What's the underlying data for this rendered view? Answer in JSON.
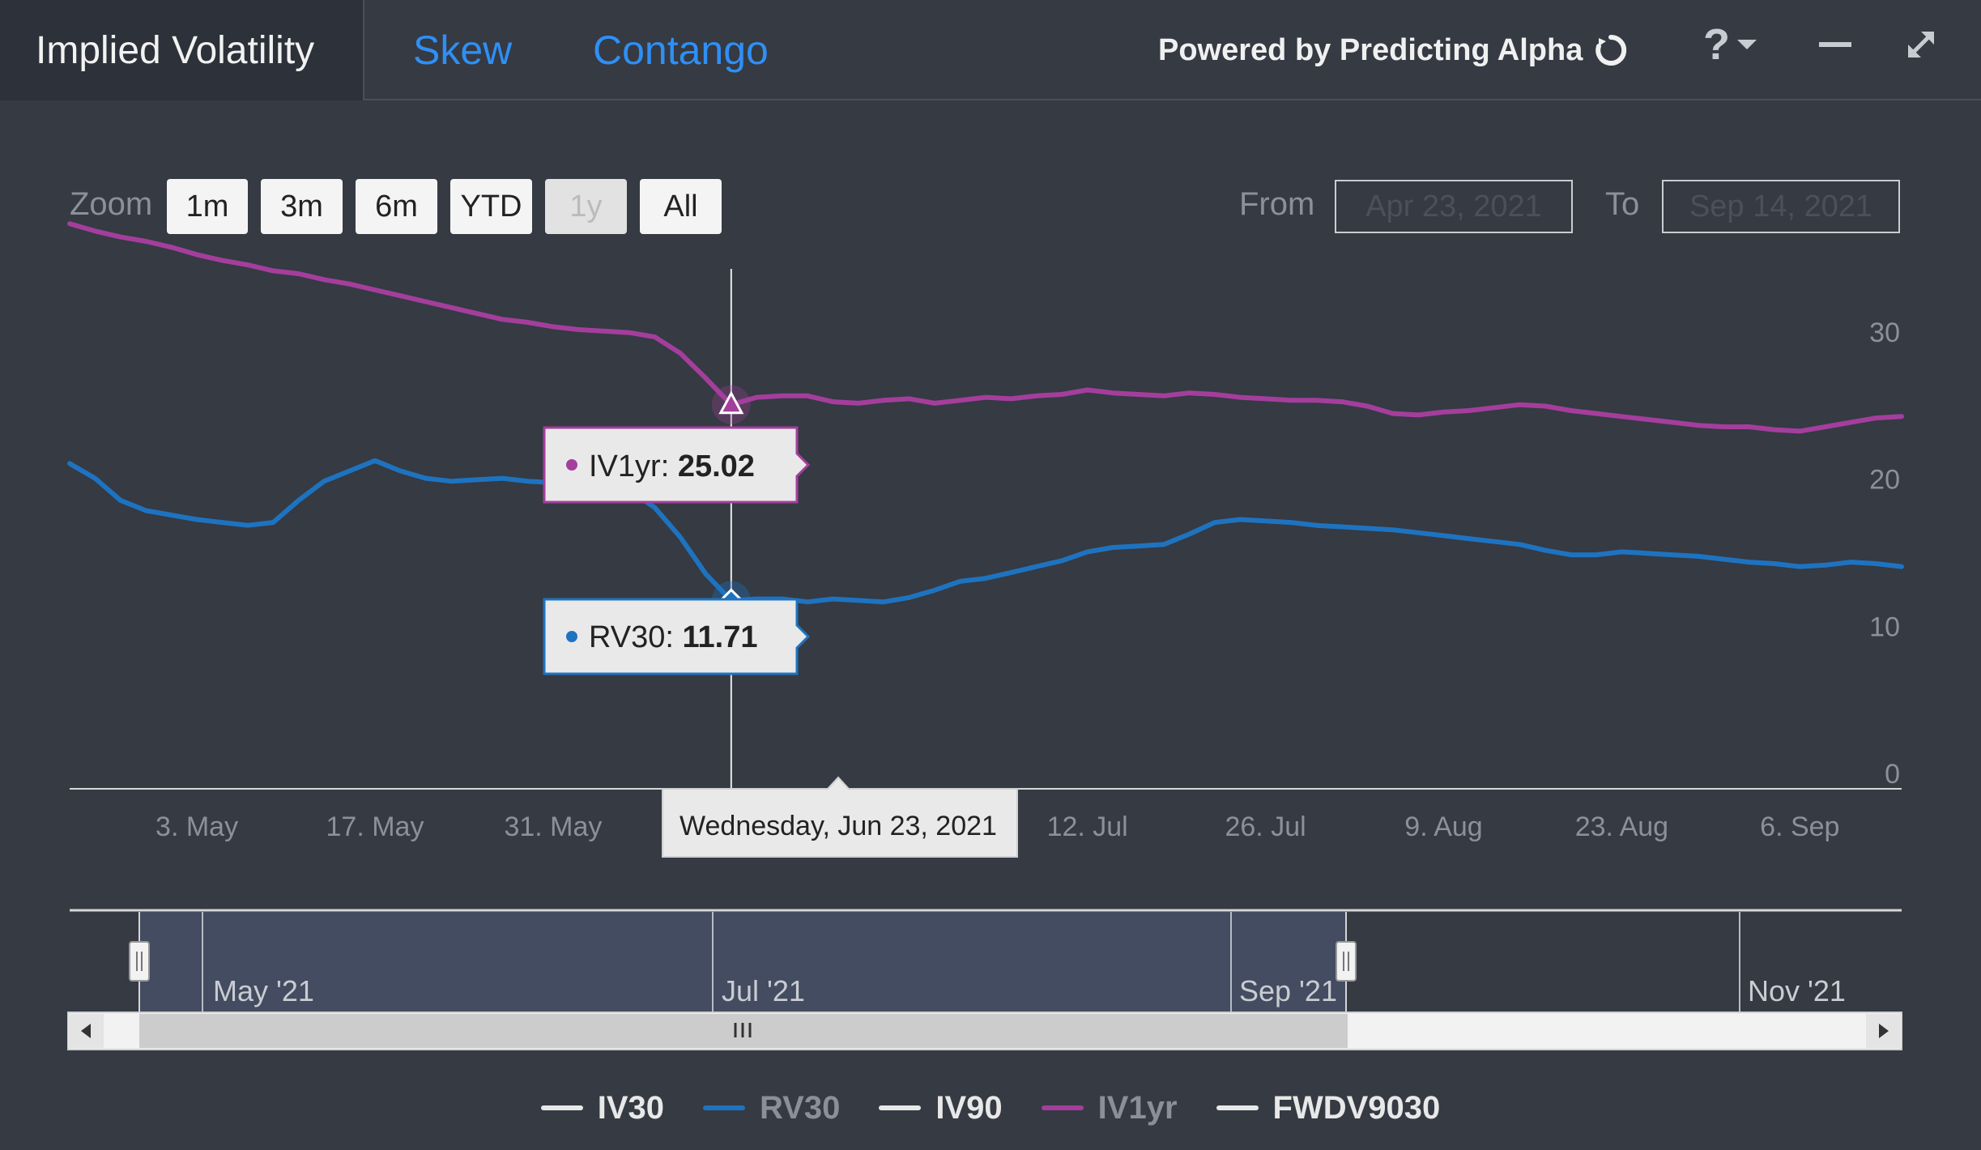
{
  "header": {
    "tabs": [
      {
        "label": "Implied Volatility",
        "active": true
      },
      {
        "label": "Skew",
        "active": false
      },
      {
        "label": "Contango",
        "active": false
      }
    ],
    "powered_by": "Powered by Predicting Alpha",
    "help_icon": "question-icon",
    "minimize_icon": "minimize-icon",
    "expand_icon": "expand-icon"
  },
  "zoom": {
    "label": "Zoom",
    "buttons": [
      {
        "label": "1m",
        "disabled": false
      },
      {
        "label": "3m",
        "disabled": false
      },
      {
        "label": "6m",
        "disabled": false
      },
      {
        "label": "YTD",
        "disabled": false
      },
      {
        "label": "1y",
        "disabled": true
      },
      {
        "label": "All",
        "disabled": false
      }
    ]
  },
  "range": {
    "from_label": "From",
    "from_value": "Apr 23, 2021",
    "to_label": "To",
    "to_value": "Sep 14, 2021"
  },
  "tooltip": {
    "date": "Wednesday, Jun 23, 2021",
    "iv1yr_label": "IV1yr",
    "iv1yr_value": "25.02",
    "rv30_label": "RV30",
    "rv30_value": "11.71"
  },
  "navigator": {
    "labels": [
      "May '21",
      "Jul '21",
      "Sep '21",
      "Nov '21"
    ]
  },
  "colors": {
    "iv1yr": "#a43e9c",
    "rv30": "#1e73c0",
    "white": "#e8e8e8",
    "background": "#353a43"
  },
  "chart_data": {
    "type": "line",
    "title": "Implied Volatility",
    "x_range": [
      "2021-04-23",
      "2021-09-14"
    ],
    "ylim": [
      0,
      40
    ],
    "yticks": [
      0,
      10,
      20,
      30
    ],
    "xticks": [
      "3. May",
      "17. May",
      "31. May",
      "12. Jul",
      "26. Jul",
      "9. Aug",
      "23. Aug",
      "6. Sep"
    ],
    "xtick_days": [
      10,
      24,
      38,
      80,
      94,
      108,
      122,
      136
    ],
    "x_days": [
      0,
      2,
      4,
      6,
      8,
      10,
      12,
      14,
      16,
      18,
      20,
      22,
      24,
      26,
      28,
      30,
      32,
      34,
      36,
      38,
      40,
      42,
      44,
      46,
      48,
      50,
      52,
      54,
      56,
      58,
      60,
      62,
      64,
      66,
      68,
      70,
      72,
      74,
      76,
      78,
      80,
      82,
      84,
      86,
      88,
      90,
      92,
      94,
      96,
      98,
      100,
      102,
      104,
      106,
      108,
      110,
      112,
      114,
      116,
      118,
      120,
      122,
      124,
      126,
      128,
      130,
      132,
      134,
      136,
      138,
      140,
      142,
      144
    ],
    "series": [
      {
        "name": "IV1yr",
        "values": [
          37.3,
          36.8,
          36.4,
          36.1,
          35.7,
          35.2,
          34.8,
          34.5,
          34.1,
          33.9,
          33.5,
          33.2,
          32.8,
          32.4,
          32.0,
          31.6,
          31.2,
          30.8,
          30.6,
          30.3,
          30.1,
          30.0,
          29.9,
          29.6,
          28.5,
          26.8,
          25.0,
          25.5,
          25.6,
          25.6,
          25.2,
          25.1,
          25.3,
          25.4,
          25.1,
          25.3,
          25.5,
          25.4,
          25.6,
          25.7,
          26.0,
          25.8,
          25.7,
          25.6,
          25.8,
          25.7,
          25.5,
          25.4,
          25.3,
          25.3,
          25.2,
          24.9,
          24.4,
          24.3,
          24.5,
          24.6,
          24.8,
          25.0,
          24.9,
          24.6,
          24.4,
          24.2,
          24.0,
          23.8,
          23.6,
          23.5,
          23.5,
          23.3,
          23.2,
          23.5,
          23.8,
          24.1,
          24.2
        ]
      },
      {
        "name": "RV30",
        "values": [
          21.0,
          20.0,
          18.5,
          17.8,
          17.5,
          17.2,
          17.0,
          16.8,
          17.0,
          18.5,
          19.8,
          20.5,
          21.2,
          20.5,
          20.0,
          19.8,
          19.9,
          20.0,
          19.8,
          19.7,
          19.5,
          19.3,
          19.2,
          18.0,
          16.0,
          13.5,
          11.7,
          11.8,
          11.8,
          11.6,
          11.8,
          11.7,
          11.6,
          11.9,
          12.4,
          13.0,
          13.2,
          13.6,
          14.0,
          14.4,
          15.0,
          15.3,
          15.4,
          15.5,
          16.2,
          17.0,
          17.2,
          17.1,
          17.0,
          16.8,
          16.7,
          16.6,
          16.5,
          16.3,
          16.1,
          15.9,
          15.7,
          15.5,
          15.1,
          14.8,
          14.8,
          15.0,
          14.9,
          14.8,
          14.7,
          14.5,
          14.3,
          14.2,
          14.0,
          14.1,
          14.3,
          14.2,
          14.0
        ]
      }
    ],
    "hidden_series": [
      "IV30",
      "IV90",
      "FWDV9030"
    ],
    "legend": [
      {
        "name": "IV30",
        "color": "#e8e8e8",
        "visible": true
      },
      {
        "name": "RV30",
        "color": "#1e73c0",
        "visible": false
      },
      {
        "name": "IV90",
        "color": "#e8e8e8",
        "visible": true
      },
      {
        "name": "IV1yr",
        "color": "#a43e9c",
        "visible": false
      },
      {
        "name": "FWDV9030",
        "color": "#e8e8e8",
        "visible": true
      }
    ],
    "hover_day": 52
  }
}
